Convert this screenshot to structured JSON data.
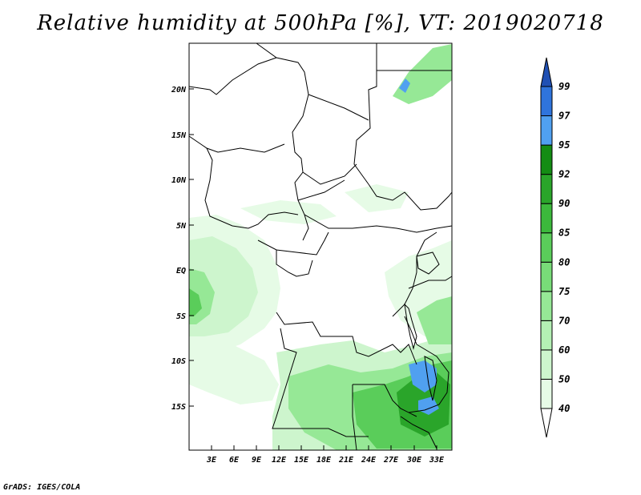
{
  "title": "Relative humidity at 500hPa [%], VT: 2019020718",
  "credit": "GrADS: IGES/COLA",
  "map": {
    "y_ticks": [
      "20N",
      "15N",
      "10N",
      "5N",
      "EQ",
      "5S",
      "10S",
      "15S"
    ],
    "x_ticks": [
      "3E",
      "6E",
      "9E",
      "12E",
      "15E",
      "18E",
      "21E",
      "24E",
      "27E",
      "30E",
      "33E"
    ]
  },
  "colorbar": {
    "levels": [
      "40",
      "50",
      "60",
      "70",
      "75",
      "80",
      "85",
      "90",
      "92",
      "95",
      "97",
      "99"
    ],
    "colors": [
      "#ffffff",
      "#e6fbe6",
      "#cdf5cd",
      "#b4f0b4",
      "#96e896",
      "#78dc78",
      "#5acd5a",
      "#3cb93c",
      "#2aa52a",
      "#148c14",
      "#50a0f0",
      "#2f74dc",
      "#2050b4"
    ]
  }
}
